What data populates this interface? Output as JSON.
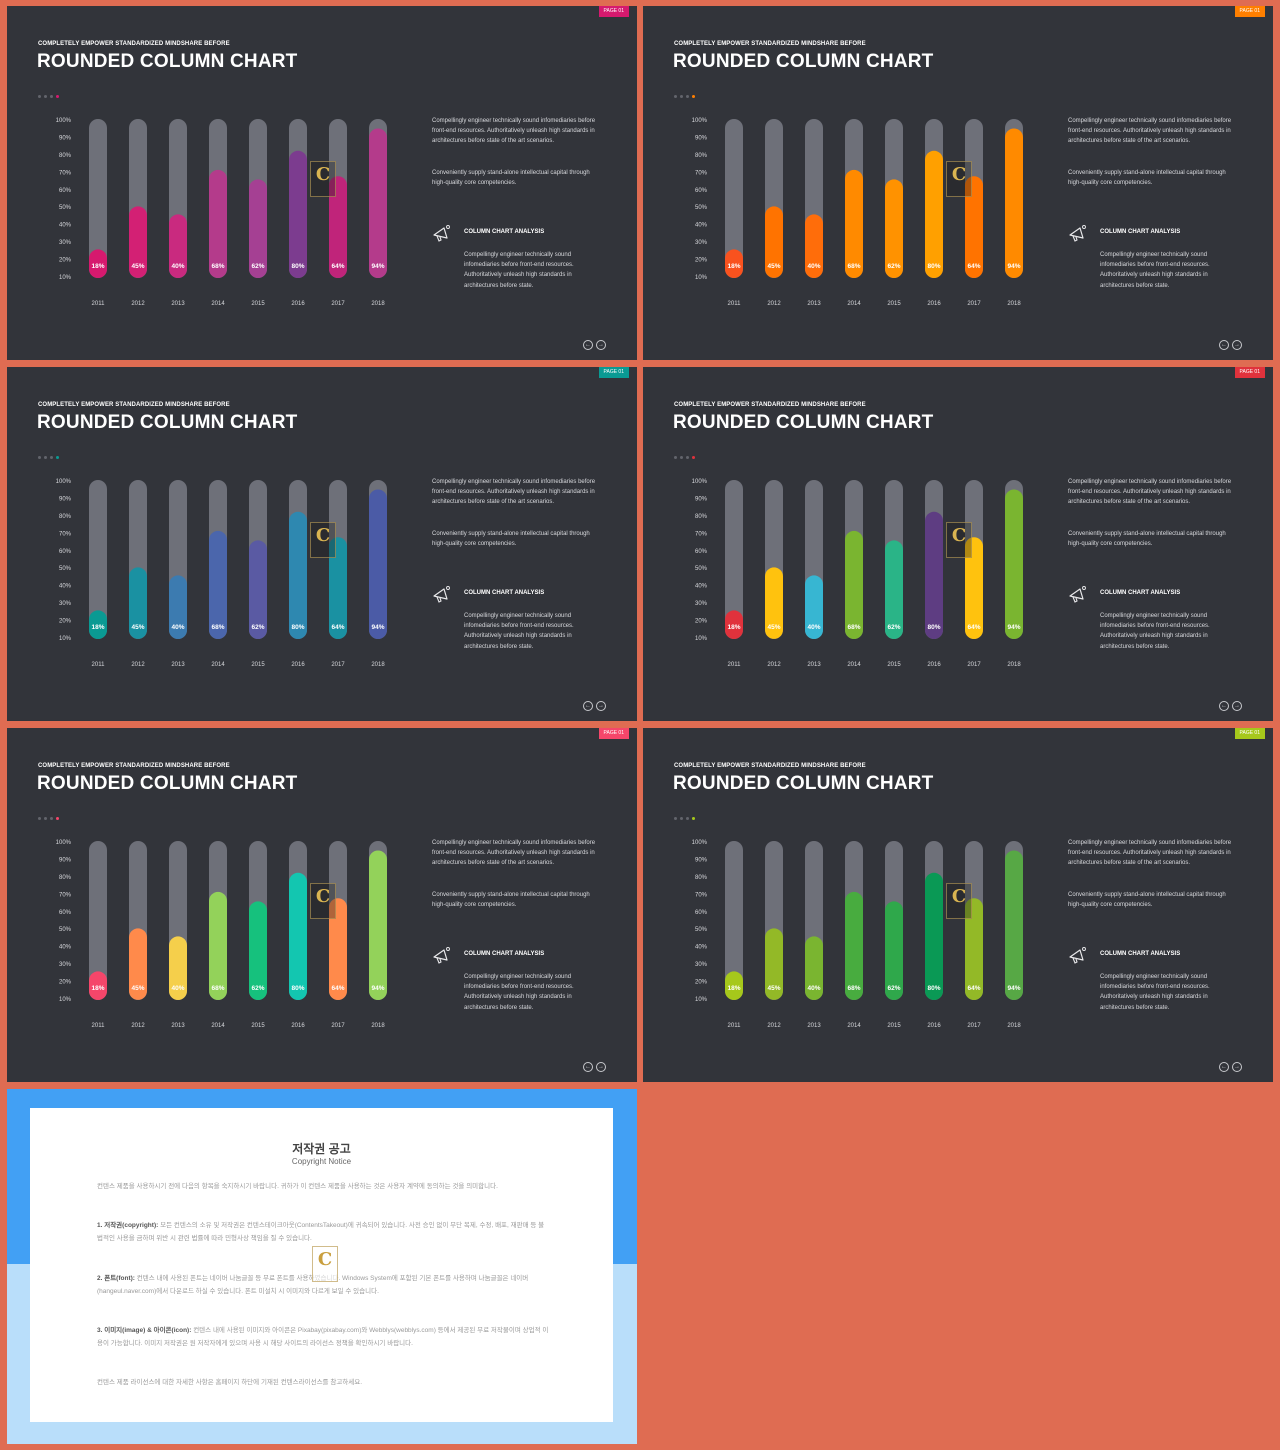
{
  "slides": [
    {
      "id": "s1",
      "accent": "#d6196e",
      "bar_colors": [
        "#d6196e",
        "#d32074",
        "#c92a7f",
        "#b43b8b",
        "#a54093",
        "#7c3c8f",
        "#c0247a",
        "#b43b8b"
      ]
    },
    {
      "id": "s2",
      "accent": "#ff7f00",
      "bar_colors": [
        "#f9521e",
        "#ff7300",
        "#ff6d0a",
        "#ff8a00",
        "#ff9200",
        "#ffa000",
        "#ff7300",
        "#ff8a00"
      ]
    },
    {
      "id": "s3",
      "accent": "#0a9a93",
      "bar_colors": [
        "#0a9a93",
        "#1a91a2",
        "#3c7bb0",
        "#4b66ac",
        "#5a5aa3",
        "#2e88b0",
        "#1a91a2",
        "#4b5ba6"
      ]
    },
    {
      "id": "s4",
      "accent": "#e0323c",
      "bar_colors": [
        "#e0323c",
        "#ffc20e",
        "#37b6d2",
        "#7ab530",
        "#2ab487",
        "#5e3d82",
        "#ffc20e",
        "#7ab530"
      ]
    },
    {
      "id": "s5",
      "accent": "#f5466a",
      "bar_colors": [
        "#f5466a",
        "#ff8a4b",
        "#f5cf4b",
        "#93d25a",
        "#16c17d",
        "#13c6b0",
        "#ff8a4b",
        "#93d25a"
      ]
    },
    {
      "id": "s6",
      "accent": "#a6c81b",
      "bar_colors": [
        "#a6c81b",
        "#93b927",
        "#7ab530",
        "#48ac3f",
        "#2fa84b",
        "#0a9955",
        "#93b927",
        "#57a845"
      ]
    }
  ],
  "slide_text": {
    "page_badge": "PAGE 01",
    "subtitle": "COMPLETELY  EMPOWER  STANDARDIZED  MINDSHARE  BEFORE",
    "title": "ROUNDED COLUMN CHART",
    "para1": "Compellingly engineer technically sound infomediaries before front-end resources. Authoritatively unleash high standards in architectures before state of the art scenarios.",
    "para2": "Conveniently supply stand-alone intellectual capital through high-quality core competencies.",
    "analysis_title": "COLUMN CHART ANALYSIS",
    "analysis_text": "Compellingly engineer technically sound infomediaries before front-end resources. Authoritatively unleash high standards in architectures before state.",
    "nav_prev": "←",
    "nav_next": "→"
  },
  "chart_data": {
    "type": "bar",
    "categories": [
      "2011",
      "2012",
      "2013",
      "2014",
      "2015",
      "2016",
      "2017",
      "2018"
    ],
    "values": [
      18,
      45,
      40,
      68,
      62,
      80,
      64,
      94
    ],
    "value_labels": [
      "18%",
      "45%",
      "40%",
      "68%",
      "62%",
      "80%",
      "64%",
      "94%"
    ],
    "y_ticks": [
      "100%",
      "90%",
      "80%",
      "70%",
      "60%",
      "50%",
      "40%",
      "30%",
      "20%",
      "10%"
    ],
    "ylim": [
      0,
      100
    ],
    "track_color": "#6e7079",
    "label_color": "#ffffff",
    "tick_color": "#d7d8dc",
    "grid": false,
    "legend": "none"
  },
  "copyright": {
    "title": "저작권 공고",
    "subtitle": "Copyright Notice",
    "intro": "컨텐스 제품을 사용하시기 전에 다음의 항목을 숙지하시기 바랍니다. 귀하가 이 컨텐스 제품을 사용하는 것은 사용자 계약에 동의하는 것을 의미합니다.",
    "item1_head": "1. 저작권(copyright):",
    "item1": "모든 컨텐스의 소유 및 저작권은 컨텐스테이크아웃(ContentsTakeout)에 귀속되어 있습니다. 사전 승인 없이 무단 복제, 수정, 배포, 재판매 등 불법적인 사용을 금하며 위반 시 관련 법률에 따라 민형사상 책임을 질 수 있습니다.",
    "item2_head": "2. 폰트(font):",
    "item2": "컨텐스 내에 사용된 폰트는 네이버 나눔글꼴 등 무료 폰트를 사용하였습니다. Windows System에 포함된 기본 폰트를 사용하며 나눔글꼴은 네이버(hangeul.naver.com)에서 다운로드 하실 수 있습니다. 폰트 미설치 시 이미지와 다르게 보일 수 있습니다.",
    "item3_head": "3. 이미지(image) & 아이콘(icon):",
    "item3": "컨텐스 내에 사용된 이미지와 아이콘은 Pixabay(pixabay.com)와 Webblys(webblys.com) 등에서 제공된 무료 저작물이며 상업적 이용이 가능합니다. 이미지 저작권은 원 저작자에게 있으며 사용 시 해당 사이트의 라이선스 정책을 확인하시기 바랍니다.",
    "outro": "컨텐스 제품 라이선스에 대한 자세한 사항은 홈페이지 하단에 기재된 컨텐스라이선스를 참고하세요."
  }
}
